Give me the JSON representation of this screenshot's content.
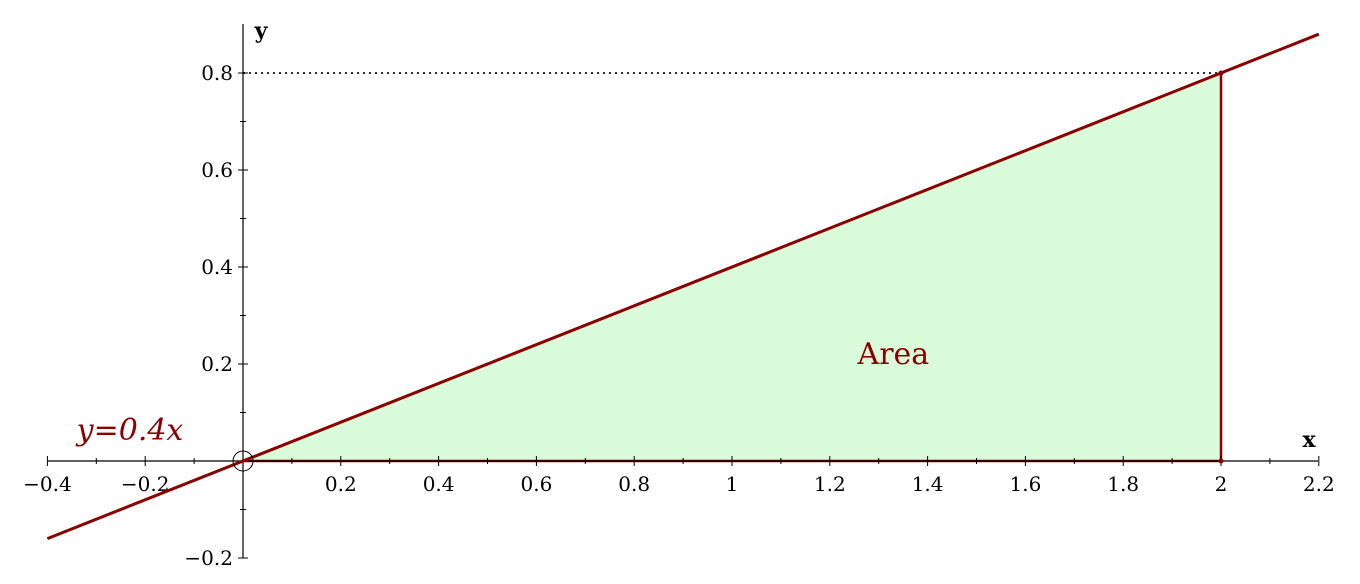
{
  "chart_data": {
    "type": "line",
    "title": "",
    "xlabel": "x",
    "ylabel": "y",
    "xlim": [
      -0.4,
      2.2
    ],
    "ylim": [
      -0.2,
      0.9
    ],
    "grid": false,
    "x_ticks": [
      -0.4,
      -0.2,
      0.2,
      0.4,
      0.6,
      0.8,
      1,
      1.2,
      1.4,
      1.6,
      1.8,
      2,
      2.2
    ],
    "x_tick_labels": [
      "−0.4",
      "−0.2",
      "0.2",
      "0.4",
      "0.6",
      "0.8",
      "1",
      "1.2",
      "1.4",
      "1.6",
      "1.8",
      "2",
      "2.2"
    ],
    "y_ticks": [
      -0.2,
      0.2,
      0.4,
      0.6,
      0.8
    ],
    "y_tick_labels": [
      "−0.2",
      "0.2",
      "0.4",
      "0.6",
      "0.8"
    ],
    "series": [
      {
        "name": "y=0.4x",
        "color": "#8b0000",
        "x": [
          -0.4,
          2.2
        ],
        "y": [
          -0.16,
          0.88
        ]
      }
    ],
    "shaded_region": {
      "label": "Area",
      "polygon_x": [
        0,
        2,
        2
      ],
      "polygon_y": [
        0,
        0.8,
        0
      ],
      "fill_color": "#d9fbd9",
      "edge_color": "#8b0000"
    },
    "guide_line": {
      "style": "dotted",
      "x": [
        0,
        2
      ],
      "y": [
        0.8,
        0.8
      ]
    },
    "marker": {
      "shape": "open-circle",
      "x": 0,
      "y": 0
    },
    "annotations": [
      {
        "text": "Area",
        "x": 1.33,
        "y": 0.2,
        "color": "#8b0000"
      },
      {
        "text": "y=0.4x",
        "x": -0.2,
        "y": 0.05,
        "color": "#8b0000"
      }
    ]
  }
}
